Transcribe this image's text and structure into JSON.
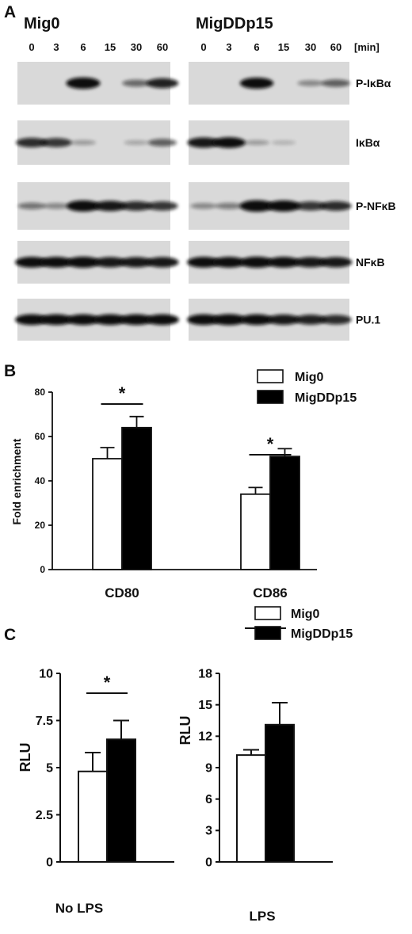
{
  "panel_a": {
    "letter": "A",
    "groups": [
      "Mig0",
      "MigDDp15"
    ],
    "timepoints": [
      "0",
      "3",
      "6",
      "15",
      "30",
      "60"
    ],
    "time_unit": "[min]",
    "blots": [
      {
        "protein": "P-IκBα",
        "intensity": [
          [
            0,
            0,
            0.95,
            0,
            0.4,
            0.75
          ],
          [
            0,
            0,
            0.9,
            0,
            0.25,
            0.45
          ]
        ]
      },
      {
        "protein": "IκBα",
        "intensity": [
          [
            0.7,
            0.65,
            0.15,
            0,
            0.1,
            0.45
          ],
          [
            0.8,
            0.85,
            0.15,
            0.05,
            0,
            0
          ]
        ]
      },
      {
        "protein": "P-NFκB",
        "intensity": [
          [
            0.35,
            0.25,
            0.9,
            0.8,
            0.7,
            0.65
          ],
          [
            0.25,
            0.3,
            0.95,
            0.9,
            0.65,
            0.7
          ]
        ]
      },
      {
        "protein": "NFκB",
        "intensity": [
          [
            0.85,
            0.85,
            0.9,
            0.8,
            0.8,
            0.8
          ],
          [
            0.85,
            0.85,
            0.9,
            0.85,
            0.8,
            0.8
          ]
        ]
      },
      {
        "protein": "PU.1",
        "intensity": [
          [
            0.85,
            0.85,
            0.85,
            0.85,
            0.85,
            0.85
          ],
          [
            0.85,
            0.9,
            0.85,
            0.8,
            0.75,
            0.7
          ]
        ]
      }
    ]
  },
  "chart_data": [
    {
      "type": "bar",
      "panel": "B",
      "categories": [
        "CD80",
        "CD86"
      ],
      "series": [
        {
          "name": "Mig0",
          "values": [
            50,
            34
          ],
          "errors": [
            5,
            3
          ]
        },
        {
          "name": "MigDDp15",
          "values": [
            64,
            51
          ],
          "errors": [
            5,
            3.5
          ]
        }
      ],
      "ylabel": "Fold enrichment",
      "ylim": [
        0,
        80
      ],
      "yticks": [
        "0",
        "20",
        "40",
        "60",
        "80"
      ],
      "significance": [
        "*",
        "*"
      ],
      "legend_position": "top-right"
    },
    {
      "type": "bar",
      "panel": "C",
      "categories": [
        "No LPS"
      ],
      "series": [
        {
          "name": "Mig0",
          "values": [
            4.8
          ],
          "errors": [
            1.0
          ]
        },
        {
          "name": "MigDDp15",
          "values": [
            6.5
          ],
          "errors": [
            1.0
          ]
        }
      ],
      "ylabel": "RLU",
      "ylim": [
        0,
        10
      ],
      "yticks": [
        "0",
        "2.5",
        "5",
        "7.5",
        "10"
      ],
      "significance": [
        "*"
      ]
    },
    {
      "type": "bar",
      "panel": "C",
      "categories": [
        "LPS"
      ],
      "series": [
        {
          "name": "Mig0",
          "values": [
            10.2
          ],
          "errors": [
            0.5
          ]
        },
        {
          "name": "MigDDp15",
          "values": [
            13.1
          ],
          "errors": [
            2.1
          ]
        }
      ],
      "ylabel": "RLU",
      "ylim": [
        0,
        18
      ],
      "yticks": [
        "0",
        "3",
        "6",
        "9",
        "12",
        "15",
        "18"
      ],
      "significance": [
        "*"
      ],
      "legend_position": "top"
    }
  ],
  "colors": {
    "series_fill": [
      "#ffffff",
      "#000000"
    ],
    "blot_bg": "#d9d9d9",
    "band": "#0a0a0a"
  }
}
